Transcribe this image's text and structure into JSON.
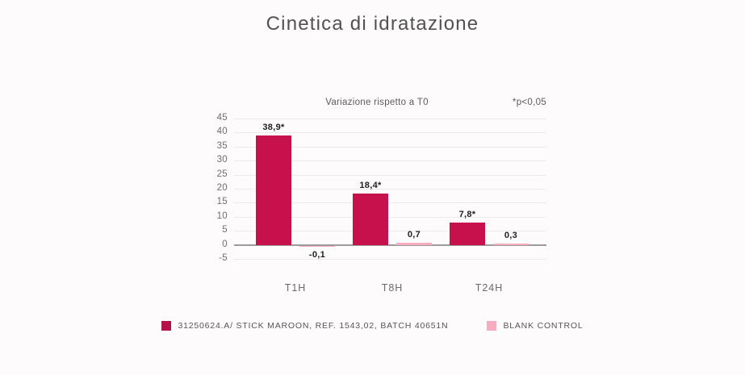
{
  "page": {
    "title": "Cinetica di idratazione"
  },
  "chart": {
    "subtitle": "Variazione rispetto a T0",
    "significance_note": "*p<0,05",
    "colors": {
      "series1": "#c6114c",
      "series1_legend": "#b6124a",
      "series2": "#f7abbe",
      "zero_axis": "#9c9c9c",
      "gridline": "#eceaeb",
      "background": "#fdfbfc"
    }
  },
  "chart_data": {
    "type": "bar",
    "title": "Cinetica di idratazione",
    "subtitle": "Variazione rispetto a T0",
    "annotation": "*p<0,05",
    "categories": [
      "T1H",
      "T8H",
      "T24H"
    ],
    "series": [
      {
        "key": "stick-maroon",
        "name": "31250624.A/ STICK MAROON, REF. 1543,02, BATCH 40651N",
        "values": [
          38.9,
          18.4,
          7.8
        ],
        "value_labels": [
          "38,9*",
          "18,4*",
          "7,8*"
        ],
        "color": "#c6114c",
        "legend_color": "#b6124a"
      },
      {
        "key": "blank-control",
        "name": "BLANK CONTROL",
        "values": [
          -0.1,
          0.7,
          0.3
        ],
        "value_labels": [
          "-0,1",
          "0,7",
          "0,3"
        ],
        "color": "#f7abbe",
        "legend_color": "#f7abbe"
      }
    ],
    "ylim": [
      -5,
      45
    ],
    "ytick_step": 5,
    "yticks": [
      45,
      40,
      35,
      30,
      25,
      20,
      15,
      10,
      5,
      0,
      -5
    ],
    "grid": true,
    "legend_position": "bottom"
  }
}
